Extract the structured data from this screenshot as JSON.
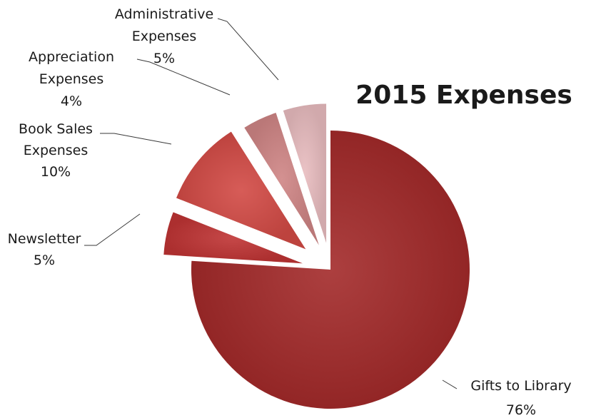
{
  "chart_data": {
    "type": "pie",
    "title": "2015 Expenses",
    "exploded": true,
    "slices": [
      {
        "label": "Gifts to Library",
        "value": 76,
        "percent_label": "76%",
        "color": "#a32a2a"
      },
      {
        "label": "Newsletter",
        "value": 5,
        "percent_label": "5%",
        "color": "#bf3434"
      },
      {
        "label": "Book Sales Expenses",
        "value": 10,
        "percent_label": "10%",
        "color": "#d24a45"
      },
      {
        "label": "Appreciation Expenses",
        "value": 4,
        "percent_label": "4%",
        "color": "#cf8585"
      },
      {
        "label": "Administrative Expenses",
        "value": 5,
        "percent_label": "5%",
        "color": "#e8bcbf"
      }
    ],
    "label_lines": [
      [
        "Gifts to Library",
        "76%"
      ],
      [
        "Newsletter",
        "5%"
      ],
      [
        "Book Sales",
        "Expenses",
        "10%"
      ],
      [
        "Appreciation",
        "Expenses",
        "4%"
      ],
      [
        "Administrative",
        "Expenses",
        "5%"
      ]
    ]
  }
}
